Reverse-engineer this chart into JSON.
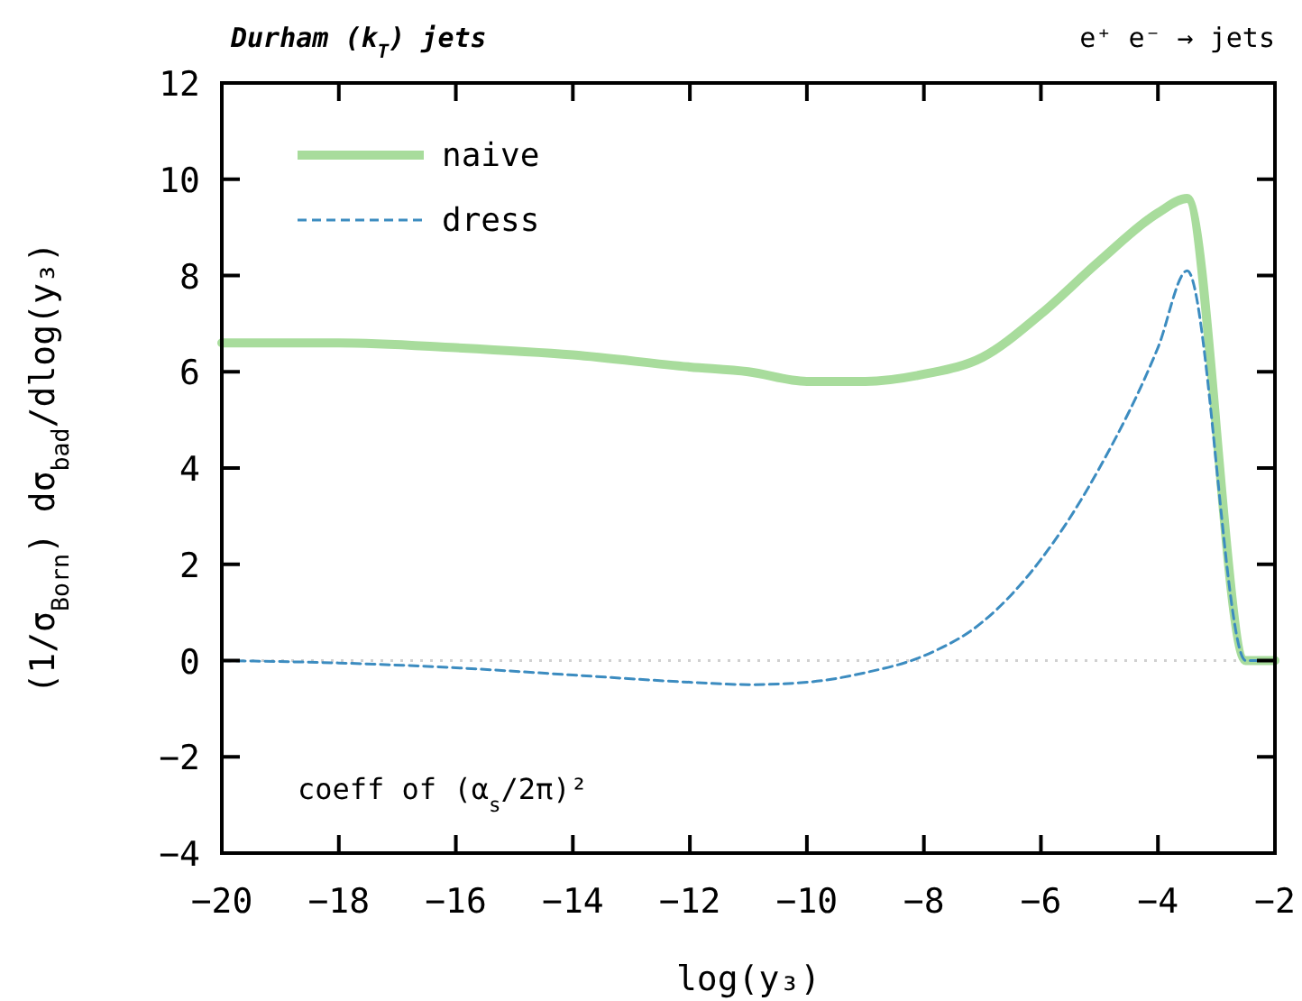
{
  "chart_data": {
    "type": "line",
    "title": "Durham (k$_{T}$) jets",
    "subtitle": "e⁺ e⁻ → jets",
    "xlabel": "log(y₃)",
    "ylabel": "(1/σ$_{Born}$) dσ$_{bad}$/dlog(y₃)",
    "x": [
      -20,
      -18,
      -16,
      -14,
      -12,
      -11,
      -10,
      -9,
      -8,
      -7,
      -6,
      -5,
      -4,
      -3.5,
      -2.5,
      -2
    ],
    "series": [
      {
        "name": "naive",
        "color": "#a8dc9c",
        "line_style": "solid",
        "values": [
          6.6,
          6.6,
          6.5,
          6.35,
          6.1,
          6.0,
          5.8,
          5.8,
          5.95,
          6.3,
          7.2,
          8.3,
          9.3,
          9.6,
          0,
          0
        ]
      },
      {
        "name": "dress",
        "color": "#3c8cc0",
        "line_style": "dashed",
        "values": [
          0,
          -0.05,
          -0.15,
          -0.3,
          -0.45,
          -0.5,
          -0.45,
          -0.25,
          0.1,
          0.8,
          2.1,
          4.0,
          6.5,
          8.1,
          0,
          0
        ]
      }
    ],
    "xlim": [
      -20,
      -2
    ],
    "xticks": [
      -20,
      -18,
      -16,
      -14,
      -12,
      -10,
      -8,
      -6,
      -4,
      -2
    ],
    "ylim": [
      -4,
      12
    ],
    "yticks": [
      -4,
      -2,
      0,
      2,
      4,
      6,
      8,
      10,
      12
    ],
    "ref_lines": [
      {
        "axis": "y",
        "value": 0,
        "color": "#d0d0d0",
        "line_style": "dotted"
      }
    ],
    "annotations": [
      "coeff of (α$_{s}$/2π)²"
    ],
    "legend": "top left",
    "grid": false
  }
}
